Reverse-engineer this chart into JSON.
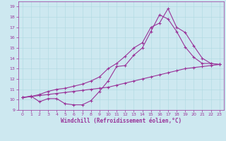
{
  "xlabel": "Windchill (Refroidissement éolien,°C)",
  "xlim": [
    -0.5,
    23.5
  ],
  "ylim": [
    9,
    19.5
  ],
  "yticks": [
    9,
    10,
    11,
    12,
    13,
    14,
    15,
    16,
    17,
    18,
    19
  ],
  "xticks": [
    0,
    1,
    2,
    3,
    4,
    5,
    6,
    7,
    8,
    9,
    10,
    11,
    12,
    13,
    14,
    15,
    16,
    17,
    18,
    19,
    20,
    21,
    22,
    23
  ],
  "bg_color": "#cde8f0",
  "line_color": "#993399",
  "line1_x": [
    0,
    1,
    2,
    3,
    4,
    5,
    6,
    7,
    8,
    9,
    10,
    11,
    12,
    13,
    14,
    15,
    16,
    17,
    18,
    19,
    20,
    21,
    22,
    23
  ],
  "line1_y": [
    10.2,
    10.3,
    10.4,
    10.5,
    10.6,
    10.7,
    10.8,
    10.9,
    11.0,
    11.1,
    11.2,
    11.4,
    11.6,
    11.8,
    12.0,
    12.2,
    12.4,
    12.6,
    12.8,
    13.0,
    13.1,
    13.2,
    13.3,
    13.4
  ],
  "line2_x": [
    0,
    1,
    2,
    3,
    4,
    5,
    6,
    7,
    8,
    9,
    10,
    11,
    12,
    13,
    14,
    15,
    16,
    17,
    18,
    19,
    20,
    21,
    22,
    23
  ],
  "line2_y": [
    10.2,
    10.35,
    9.8,
    10.1,
    10.1,
    9.6,
    9.5,
    9.5,
    9.9,
    10.8,
    11.8,
    13.2,
    13.3,
    14.3,
    15.0,
    16.6,
    18.2,
    17.8,
    16.6,
    15.1,
    14.1,
    13.5,
    13.5,
    13.4
  ],
  "line3_x": [
    0,
    1,
    2,
    3,
    4,
    5,
    6,
    7,
    8,
    9,
    10,
    11,
    12,
    13,
    14,
    15,
    16,
    17,
    18,
    19,
    20,
    21,
    22,
    23
  ],
  "line3_y": [
    10.2,
    10.3,
    10.5,
    10.8,
    11.0,
    11.1,
    11.3,
    11.5,
    11.8,
    12.2,
    13.0,
    13.5,
    14.2,
    15.0,
    15.5,
    17.0,
    17.4,
    18.8,
    17.0,
    16.5,
    15.2,
    14.0,
    13.5,
    13.4
  ],
  "marker": "+",
  "markersize": 3,
  "linewidth": 0.8,
  "grid_color": "#aed8e0",
  "xlabel_fontsize": 5.5,
  "tick_fontsize": 4.5
}
